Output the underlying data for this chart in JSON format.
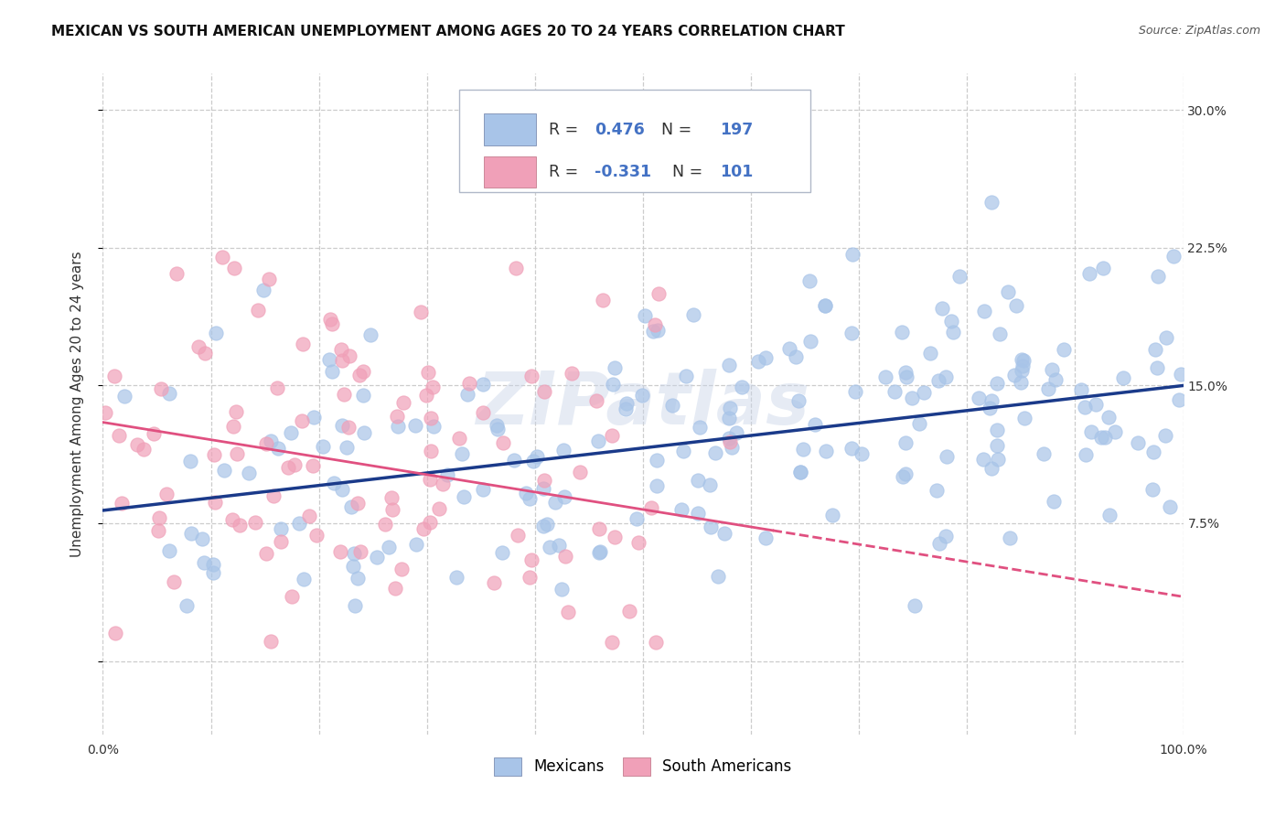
{
  "title": "MEXICAN VS SOUTH AMERICAN UNEMPLOYMENT AMONG AGES 20 TO 24 YEARS CORRELATION CHART",
  "source": "Source: ZipAtlas.com",
  "ylabel": "Unemployment Among Ages 20 to 24 years",
  "xlim": [
    0.0,
    1.0
  ],
  "ylim": [
    -0.04,
    0.32
  ],
  "x_ticks": [
    0.0,
    0.1,
    0.2,
    0.3,
    0.4,
    0.5,
    0.6,
    0.7,
    0.8,
    0.9,
    1.0
  ],
  "y_ticks": [
    0.0,
    0.075,
    0.15,
    0.225,
    0.3
  ],
  "y_tick_labels": [
    "",
    "7.5%",
    "15.0%",
    "22.5%",
    "30.0%"
  ],
  "mexican_R": 0.476,
  "mexican_N": 197,
  "south_american_R": -0.331,
  "south_american_N": 101,
  "mexican_color": "#a8c4e8",
  "mexican_line_color": "#1a3a8a",
  "south_american_color": "#f0a0b8",
  "south_american_line_color": "#e05080",
  "watermark": "ZIPatlas",
  "legend_color": "#4472c4",
  "legend_R_sa_color": "#e05080",
  "background_color": "#ffffff",
  "grid_color": "#cccccc",
  "title_fontsize": 11,
  "axis_label_fontsize": 11,
  "tick_fontsize": 10,
  "mexican_line_intercept": 0.082,
  "mexican_line_slope": 0.068,
  "south_american_line_intercept": 0.13,
  "south_american_line_slope": -0.095
}
